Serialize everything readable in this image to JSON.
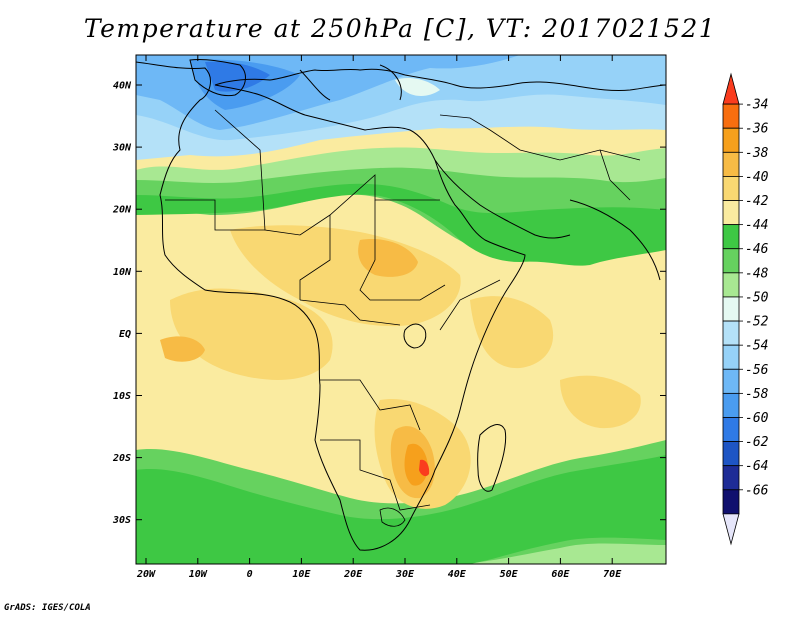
{
  "title": "Temperature at 250hPa [C], VT: 2017021521",
  "credit": "GrADS: IGES/COLA",
  "map": {
    "lat_labels": [
      "40N",
      "30N",
      "20N",
      "10N",
      "EQ",
      "10S",
      "20S",
      "30S"
    ],
    "lon_labels": [
      "20W",
      "10W",
      "0",
      "10E",
      "20E",
      "30E",
      "40E",
      "50E",
      "60E",
      "70E"
    ]
  },
  "colorbar": {
    "labels": [
      "-34",
      "-36",
      "-38",
      "-40",
      "-42",
      "-44",
      "-46",
      "-48",
      "-50",
      "-52",
      "-54",
      "-56",
      "-58",
      "-60",
      "-62",
      "-64",
      "-66"
    ],
    "colors": [
      "#fa3c1e",
      "#f86e0f",
      "#f6a01c",
      "#f7bb45",
      "#f9d872",
      "#faeba0",
      "#3ec844",
      "#66d25f",
      "#a8e892",
      "#e5f9f2",
      "#b4e1f8",
      "#96d2f8",
      "#6eb8f6",
      "#4a9cf0",
      "#2f7ae6",
      "#1e55c4",
      "#1e2c96",
      "#10106e",
      "#e6e6fa"
    ]
  }
}
